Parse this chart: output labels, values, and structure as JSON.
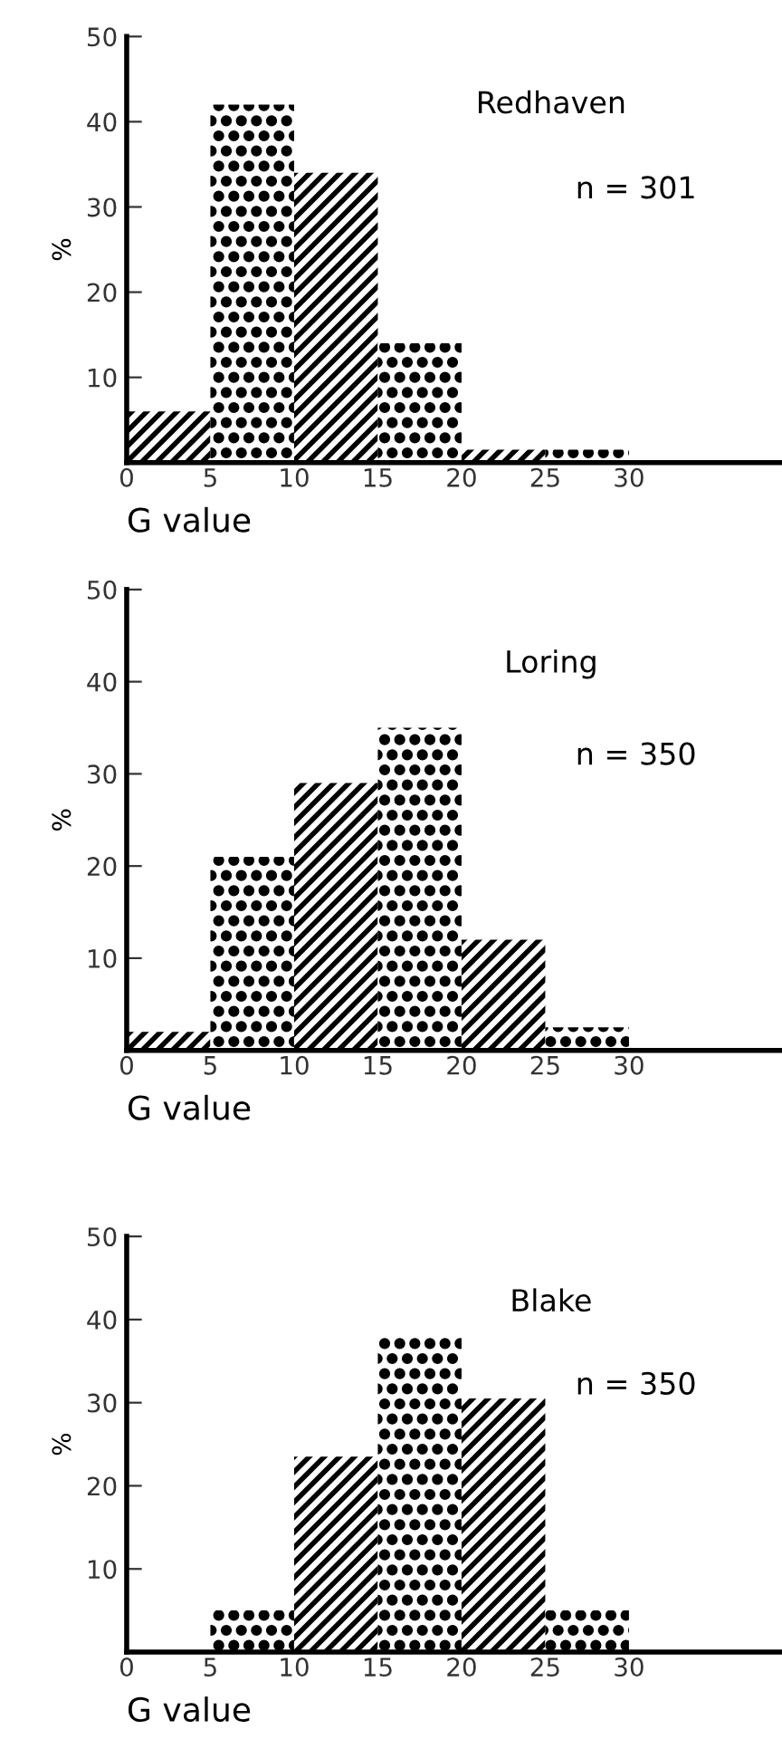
{
  "chart_data": [
    {
      "type": "histogram",
      "title": "Redhaven",
      "annotations": [
        "n = 301"
      ],
      "xlabel": "G value",
      "ylabel": "%",
      "bins": [
        0,
        5,
        10,
        15,
        20,
        25,
        30
      ],
      "values": [
        6,
        42,
        34,
        14,
        1.5,
        1.5
      ],
      "color": "#000000",
      "xlim": [
        0,
        39
      ],
      "ylim": [
        0,
        50
      ],
      "xticks": [
        0,
        5,
        10,
        15,
        20,
        25,
        30
      ],
      "yticks": [
        10,
        20,
        30,
        40,
        50
      ],
      "grid": false
    },
    {
      "type": "histogram",
      "title": "Loring",
      "annotations": [
        "n = 350"
      ],
      "xlabel": "G value",
      "ylabel": "%",
      "bins": [
        0,
        5,
        10,
        15,
        20,
        25,
        30
      ],
      "values": [
        2,
        21,
        29,
        35,
        12,
        2.5
      ],
      "color": "#000000",
      "xlim": [
        0,
        39
      ],
      "ylim": [
        0,
        50
      ],
      "xticks": [
        0,
        5,
        10,
        15,
        20,
        25,
        30
      ],
      "yticks": [
        10,
        20,
        30,
        40,
        50
      ],
      "grid": false
    },
    {
      "type": "histogram",
      "title": "Blake",
      "annotations": [
        "n = 350"
      ],
      "xlabel": "G value",
      "ylabel": "%",
      "bins": [
        0,
        5,
        10,
        15,
        20,
        25,
        30
      ],
      "values": [
        0,
        5,
        23.5,
        38,
        30.5,
        5
      ],
      "color": "#000000",
      "xlim": [
        0,
        39
      ],
      "ylim": [
        0,
        50
      ],
      "xticks": [
        0,
        5,
        10,
        15,
        20,
        25,
        30
      ],
      "yticks": [
        10,
        20,
        30,
        40,
        50
      ],
      "grid": false
    }
  ]
}
